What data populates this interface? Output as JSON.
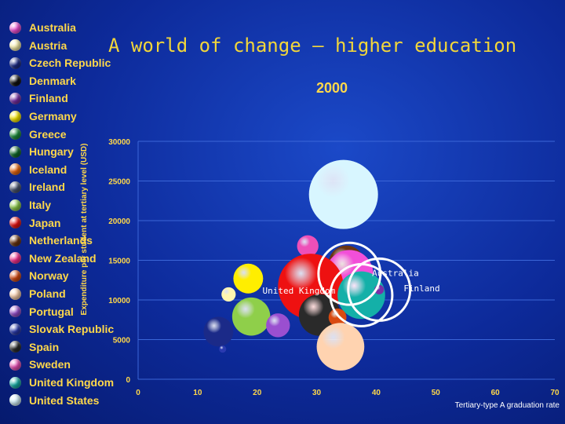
{
  "title": "A world of change – higher education",
  "chart_data": {
    "type": "scatter",
    "title": "2000",
    "xlabel": "Tertiary-type A graduation rate",
    "ylabel": "Expenditure per student at tertiary level (USD)",
    "xlim": [
      0,
      70
    ],
    "ylim": [
      0,
      30000
    ],
    "x_ticks": [
      0,
      10,
      20,
      30,
      40,
      50,
      60,
      70
    ],
    "y_ticks": [
      0,
      5000,
      10000,
      15000,
      20000,
      25000,
      30000
    ],
    "grid": "horizontal",
    "legend_position": "left",
    "legend": [
      {
        "name": "Australia",
        "color": "#f24fd8"
      },
      {
        "name": "Austria",
        "color": "#fff6b0"
      },
      {
        "name": "Czech Republic",
        "color": "#1b2a88"
      },
      {
        "name": "Denmark",
        "color": "#111111"
      },
      {
        "name": "Finland",
        "color": "#7a2fa8"
      },
      {
        "name": "Germany",
        "color": "#ffee00"
      },
      {
        "name": "Greece",
        "color": "#1a8f3a"
      },
      {
        "name": "Hungary",
        "color": "#0f6a2a"
      },
      {
        "name": "Iceland",
        "color": "#f06a10"
      },
      {
        "name": "Ireland",
        "color": "#4a5570"
      },
      {
        "name": "Italy",
        "color": "#8fcf4a"
      },
      {
        "name": "Japan",
        "color": "#ee1111"
      },
      {
        "name": "Netherlands",
        "color": "#6b3410"
      },
      {
        "name": "New Zealand",
        "color": "#ff2f92"
      },
      {
        "name": "Norway",
        "color": "#d94a10"
      },
      {
        "name": "Poland",
        "color": "#ffd3b0"
      },
      {
        "name": "Portugal",
        "color": "#9a4fd0"
      },
      {
        "name": "Slovak Republic",
        "color": "#2a3ab0"
      },
      {
        "name": "Spain",
        "color": "#2a2a2a"
      },
      {
        "name": "Sweden",
        "color": "#ee4fb8"
      },
      {
        "name": "United Kingdom",
        "color": "#14b0a8"
      },
      {
        "name": "United States",
        "color": "#d8f6ff"
      }
    ],
    "points": [
      {
        "country": "United States",
        "x": 34.5,
        "y": 23300,
        "size": 5.8
      },
      {
        "country": "Sweden",
        "x": 28.5,
        "y": 16800,
        "size": 1.8
      },
      {
        "country": "Netherlands",
        "x": 35,
        "y": 14600,
        "size": 3.0
      },
      {
        "country": "Australia",
        "x": 35.5,
        "y": 13300,
        "size": 4.0
      },
      {
        "country": "Germany",
        "x": 18.5,
        "y": 12700,
        "size": 2.5
      },
      {
        "country": "Japan",
        "x": 29,
        "y": 11700,
        "size": 5.5
      },
      {
        "country": "United Kingdom",
        "x": 37.5,
        "y": 10600,
        "size": 4.0
      },
      {
        "country": "Austria",
        "x": 15.2,
        "y": 10700,
        "size": 1.2
      },
      {
        "country": "Finland",
        "x": 40.5,
        "y": 11300,
        "size": 0.8
      },
      {
        "country": "Spain",
        "x": 30.5,
        "y": 8100,
        "size": 3.5
      },
      {
        "country": "Italy",
        "x": 19,
        "y": 7900,
        "size": 3.2
      },
      {
        "country": "Norway",
        "x": 33.5,
        "y": 7800,
        "size": 1.5
      },
      {
        "country": "Portugal",
        "x": 23.5,
        "y": 6800,
        "size": 2.0
      },
      {
        "country": "Czech Republic",
        "x": 13.5,
        "y": 6000,
        "size": 2.5
      },
      {
        "country": "Poland",
        "x": 34,
        "y": 4100,
        "size": 4.0
      },
      {
        "country": "Slovak Republic",
        "x": 14.2,
        "y": 3800,
        "size": 0.6
      }
    ],
    "highlights": [
      {
        "label": "Australia",
        "x": 35.5,
        "y": 13300,
        "ring": 5.2,
        "label_x": 39.3,
        "label_y": 13000
      },
      {
        "label": "United Kingdom",
        "x": 37.5,
        "y": 10600,
        "ring": 5.2,
        "label_x": 20.9,
        "label_y": 10800
      },
      {
        "label": "Finland",
        "x": 40.5,
        "y": 11300,
        "ring": 5.2,
        "label_x": 44.6,
        "label_y": 11100
      }
    ]
  }
}
